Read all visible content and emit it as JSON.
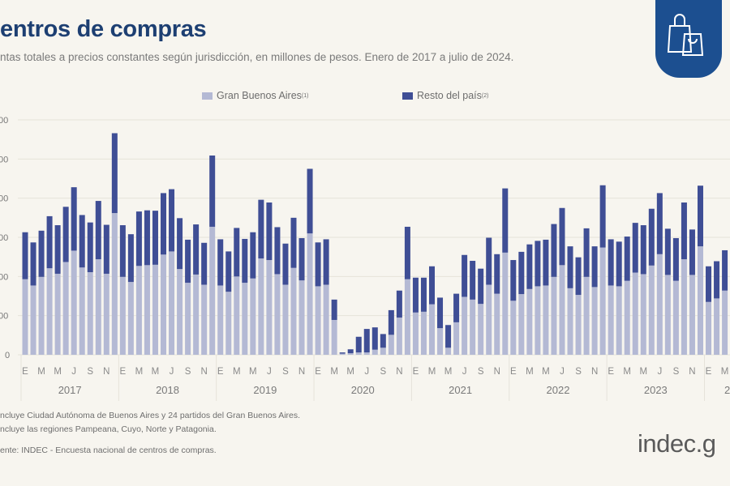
{
  "header": {
    "title": "entros de compras",
    "subtitle": "ntas totales a precios constantes según jurisdicción, en millones de pesos. Enero de 2017 a julio de 2024.",
    "badge_icon": "shopping-bags-icon"
  },
  "colors": {
    "gba": "#b4b9d4",
    "resto": "#3f4e95",
    "title": "#1d3f72",
    "badge": "#1c4f90"
  },
  "chart_data": {
    "type": "bar",
    "stacked": true,
    "title": "",
    "xlabel": "",
    "ylabel": "",
    "ylim": [
      0,
      6
    ],
    "ytick_labels": [
      "0",
      "00",
      "00",
      "00",
      "00",
      "00",
      "00"
    ],
    "grid": true,
    "legend_position": "top",
    "legend": [
      {
        "name": "Gran Buenos Aires",
        "note": "(1)"
      },
      {
        "name": "Resto del país",
        "note": "(2)"
      }
    ],
    "month_tick_labels": [
      "E",
      "M",
      "M",
      "J",
      "S",
      "N"
    ],
    "years": [
      "2017",
      "2018",
      "2019",
      "2020",
      "2021",
      "2022",
      "2023",
      "2"
    ],
    "categories_start": "2017-01",
    "series": [
      {
        "name": "Gran Buenos Aires",
        "values": [
          1.93,
          1.77,
          1.99,
          2.21,
          2.07,
          2.37,
          2.66,
          2.23,
          2.11,
          2.44,
          2.07,
          3.62,
          1.99,
          1.86,
          2.27,
          2.29,
          2.3,
          2.56,
          2.64,
          2.19,
          1.84,
          2.05,
          1.79,
          3.27,
          1.77,
          1.61,
          2.0,
          1.84,
          1.95,
          2.46,
          2.42,
          2.06,
          1.79,
          2.22,
          1.9,
          3.1,
          1.75,
          1.79,
          0.89,
          0.03,
          0.04,
          0.06,
          0.06,
          0.13,
          0.18,
          0.51,
          0.95,
          1.93,
          1.08,
          1.1,
          1.29,
          0.68,
          0.18,
          0.83,
          1.48,
          1.41,
          1.3,
          1.79,
          1.56,
          2.61,
          1.38,
          1.55,
          1.68,
          1.75,
          1.77,
          1.99,
          2.29,
          1.7,
          1.53,
          1.99,
          1.73,
          2.74,
          1.77,
          1.75,
          1.89,
          2.1,
          2.06,
          2.28,
          2.57,
          2.04,
          1.89,
          2.44,
          2.04,
          2.77,
          1.35,
          1.44,
          1.64,
          1.61
        ]
      },
      {
        "name": "Resto del país",
        "values": [
          1.2,
          1.1,
          1.18,
          1.33,
          1.24,
          1.41,
          1.62,
          1.34,
          1.27,
          1.49,
          1.25,
          2.04,
          1.32,
          1.22,
          1.39,
          1.4,
          1.38,
          1.57,
          1.59,
          1.3,
          1.1,
          1.28,
          1.07,
          1.82,
          1.18,
          1.03,
          1.24,
          1.12,
          1.18,
          1.5,
          1.47,
          1.2,
          1.05,
          1.28,
          1.08,
          1.65,
          1.12,
          1.16,
          0.52,
          0.03,
          0.1,
          0.4,
          0.6,
          0.57,
          0.35,
          0.63,
          0.69,
          1.34,
          0.89,
          0.87,
          0.97,
          0.78,
          0.58,
          0.73,
          1.07,
          0.99,
          0.9,
          1.2,
          1.01,
          1.64,
          1.04,
          1.08,
          1.14,
          1.16,
          1.17,
          1.35,
          1.46,
          1.07,
          0.96,
          1.24,
          1.04,
          1.59,
          1.18,
          1.14,
          1.13,
          1.27,
          1.25,
          1.45,
          1.56,
          1.18,
          1.09,
          1.45,
          1.16,
          1.55,
          0.91,
          0.95,
          1.03,
          0.97
        ]
      }
    ]
  },
  "footnotes": {
    "note1": "ncluye Ciudad Autónoma de Buenos Aires y 24 partidos del Gran Buenos Aires.",
    "note2": "ncluye las regiones Pampeana, Cuyo, Norte y Patagonia.",
    "source": "ente: INDEC - Encuesta nacional de centros de compras."
  },
  "logo": {
    "text": "indec.g"
  }
}
